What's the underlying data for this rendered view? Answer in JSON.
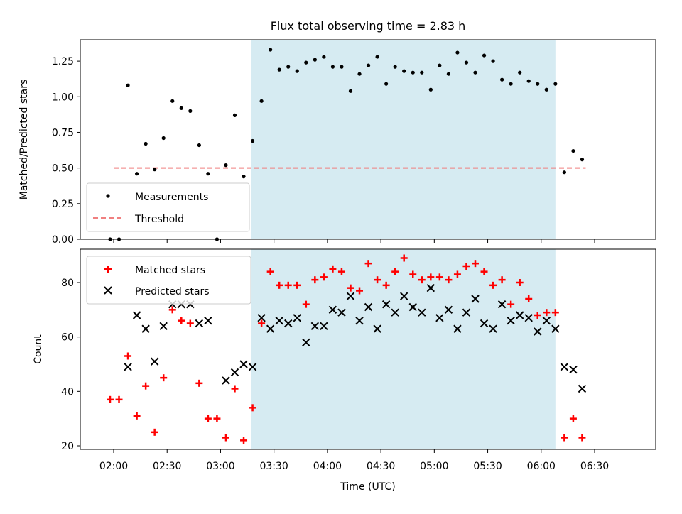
{
  "title": "Flux total observing time = 2.83 h",
  "colors": {
    "shade": "#add8e6",
    "threshold": "#f08080",
    "matched": "#ff0000",
    "predicted": "#000000",
    "measurement": "#000000"
  },
  "chart_data": [
    {
      "type": "scatter",
      "ylabel": "Matched/Predicted stars",
      "ylim": [
        0,
        1.4
      ],
      "yticks": [
        "0.00",
        "0.25",
        "0.50",
        "0.75",
        "1.00",
        "1.25"
      ],
      "shaded_interval": [
        "03:17",
        "06:08"
      ],
      "legend_placement": "lower-left",
      "series": [
        {
          "name": "Measurements",
          "marker": "dot",
          "points": [
            [
              "01:58",
              0.0
            ],
            [
              "02:03",
              0.0
            ],
            [
              "02:08",
              1.08
            ],
            [
              "02:13",
              0.46
            ],
            [
              "02:18",
              0.67
            ],
            [
              "02:23",
              0.49
            ],
            [
              "02:28",
              0.71
            ],
            [
              "02:33",
              0.97
            ],
            [
              "02:38",
              0.92
            ],
            [
              "02:43",
              0.9
            ],
            [
              "02:48",
              0.66
            ],
            [
              "02:53",
              0.46
            ],
            [
              "02:58",
              0.0
            ],
            [
              "03:03",
              0.52
            ],
            [
              "03:08",
              0.87
            ],
            [
              "03:13",
              0.44
            ],
            [
              "03:18",
              0.69
            ],
            [
              "03:23",
              0.97
            ],
            [
              "03:28",
              1.33
            ],
            [
              "03:33",
              1.19
            ],
            [
              "03:38",
              1.21
            ],
            [
              "03:43",
              1.18
            ],
            [
              "03:48",
              1.24
            ],
            [
              "03:53",
              1.26
            ],
            [
              "03:58",
              1.28
            ],
            [
              "04:03",
              1.21
            ],
            [
              "04:08",
              1.21
            ],
            [
              "04:13",
              1.04
            ],
            [
              "04:18",
              1.16
            ],
            [
              "04:23",
              1.22
            ],
            [
              "04:28",
              1.28
            ],
            [
              "04:33",
              1.09
            ],
            [
              "04:38",
              1.21
            ],
            [
              "04:43",
              1.18
            ],
            [
              "04:48",
              1.17
            ],
            [
              "04:53",
              1.17
            ],
            [
              "04:58",
              1.05
            ],
            [
              "05:03",
              1.22
            ],
            [
              "05:08",
              1.16
            ],
            [
              "05:13",
              1.31
            ],
            [
              "05:18",
              1.24
            ],
            [
              "05:23",
              1.17
            ],
            [
              "05:28",
              1.29
            ],
            [
              "05:33",
              1.25
            ],
            [
              "05:38",
              1.12
            ],
            [
              "05:43",
              1.09
            ],
            [
              "05:48",
              1.17
            ],
            [
              "05:53",
              1.11
            ],
            [
              "05:58",
              1.09
            ],
            [
              "06:03",
              1.05
            ],
            [
              "06:08",
              1.09
            ],
            [
              "06:13",
              0.47
            ],
            [
              "06:18",
              0.62
            ],
            [
              "06:23",
              0.56
            ]
          ]
        },
        {
          "name": "Threshold",
          "marker": "dashed-line",
          "points": [
            [
              "02:00",
              0.5
            ],
            [
              "06:25",
              0.5
            ]
          ]
        }
      ]
    },
    {
      "type": "scatter",
      "xlabel": "Time (UTC)",
      "ylabel": "Count",
      "ylim": [
        19,
        92
      ],
      "yticks": [
        "20",
        "40",
        "60",
        "80"
      ],
      "xticks": [
        "02:00",
        "02:30",
        "03:00",
        "03:30",
        "04:00",
        "04:30",
        "05:00",
        "05:30",
        "06:00",
        "06:30"
      ],
      "shaded_interval": [
        "03:17",
        "06:08"
      ],
      "legend_placement": "upper-left",
      "series": [
        {
          "name": "Matched stars",
          "marker": "plus",
          "points": [
            [
              "01:58",
              37
            ],
            [
              "02:03",
              37
            ],
            [
              "02:08",
              53
            ],
            [
              "02:13",
              31
            ],
            [
              "02:18",
              42
            ],
            [
              "02:23",
              25
            ],
            [
              "02:28",
              45
            ],
            [
              "02:33",
              70
            ],
            [
              "02:38",
              66
            ],
            [
              "02:43",
              65
            ],
            [
              "02:48",
              43
            ],
            [
              "02:53",
              30
            ],
            [
              "02:58",
              30
            ],
            [
              "03:03",
              23
            ],
            [
              "03:08",
              41
            ],
            [
              "03:13",
              22
            ],
            [
              "03:18",
              34
            ],
            [
              "03:23",
              65
            ],
            [
              "03:28",
              84
            ],
            [
              "03:33",
              79
            ],
            [
              "03:38",
              79
            ],
            [
              "03:43",
              79
            ],
            [
              "03:48",
              72
            ],
            [
              "03:53",
              81
            ],
            [
              "03:58",
              82
            ],
            [
              "04:03",
              85
            ],
            [
              "04:08",
              84
            ],
            [
              "04:13",
              78
            ],
            [
              "04:18",
              77
            ],
            [
              "04:23",
              87
            ],
            [
              "04:28",
              81
            ],
            [
              "04:33",
              79
            ],
            [
              "04:38",
              84
            ],
            [
              "04:43",
              89
            ],
            [
              "04:48",
              83
            ],
            [
              "04:53",
              81
            ],
            [
              "04:58",
              82
            ],
            [
              "05:03",
              82
            ],
            [
              "05:08",
              81
            ],
            [
              "05:13",
              83
            ],
            [
              "05:18",
              86
            ],
            [
              "05:23",
              87
            ],
            [
              "05:28",
              84
            ],
            [
              "05:33",
              79
            ],
            [
              "05:38",
              81
            ],
            [
              "05:43",
              72
            ],
            [
              "05:48",
              80
            ],
            [
              "05:53",
              74
            ],
            [
              "05:58",
              68
            ],
            [
              "06:03",
              69
            ],
            [
              "06:08",
              69
            ],
            [
              "06:13",
              23
            ],
            [
              "06:18",
              30
            ],
            [
              "06:23",
              23
            ]
          ]
        },
        {
          "name": "Predicted stars",
          "marker": "x",
          "points": [
            [
              "02:08",
              49
            ],
            [
              "02:13",
              68
            ],
            [
              "02:18",
              63
            ],
            [
              "02:23",
              51
            ],
            [
              "02:28",
              64
            ],
            [
              "02:33",
              72
            ],
            [
              "02:38",
              72
            ],
            [
              "02:43",
              72
            ],
            [
              "02:48",
              65
            ],
            [
              "02:53",
              66
            ],
            [
              "03:03",
              44
            ],
            [
              "03:08",
              47
            ],
            [
              "03:13",
              50
            ],
            [
              "03:18",
              49
            ],
            [
              "03:23",
              67
            ],
            [
              "03:28",
              63
            ],
            [
              "03:33",
              66
            ],
            [
              "03:38",
              65
            ],
            [
              "03:43",
              67
            ],
            [
              "03:48",
              58
            ],
            [
              "03:53",
              64
            ],
            [
              "03:58",
              64
            ],
            [
              "04:03",
              70
            ],
            [
              "04:08",
              69
            ],
            [
              "04:13",
              75
            ],
            [
              "04:18",
              66
            ],
            [
              "04:23",
              71
            ],
            [
              "04:28",
              63
            ],
            [
              "04:33",
              72
            ],
            [
              "04:38",
              69
            ],
            [
              "04:43",
              75
            ],
            [
              "04:48",
              71
            ],
            [
              "04:53",
              69
            ],
            [
              "04:58",
              78
            ],
            [
              "05:03",
              67
            ],
            [
              "05:08",
              70
            ],
            [
              "05:13",
              63
            ],
            [
              "05:18",
              69
            ],
            [
              "05:23",
              74
            ],
            [
              "05:28",
              65
            ],
            [
              "05:33",
              63
            ],
            [
              "05:38",
              72
            ],
            [
              "05:43",
              66
            ],
            [
              "05:48",
              68
            ],
            [
              "05:53",
              67
            ],
            [
              "05:58",
              62
            ],
            [
              "06:03",
              66
            ],
            [
              "06:08",
              63
            ],
            [
              "06:13",
              49
            ],
            [
              "06:18",
              48
            ],
            [
              "06:23",
              41
            ]
          ]
        }
      ]
    }
  ]
}
